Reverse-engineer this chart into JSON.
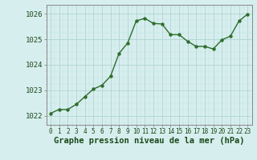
{
  "x": [
    0,
    1,
    2,
    3,
    4,
    5,
    6,
    7,
    8,
    9,
    10,
    11,
    12,
    13,
    14,
    15,
    16,
    17,
    18,
    19,
    20,
    21,
    22,
    23
  ],
  "y": [
    1022.1,
    1022.25,
    1022.25,
    1022.45,
    1022.75,
    1023.05,
    1023.2,
    1023.55,
    1024.45,
    1024.85,
    1025.72,
    1025.82,
    1025.62,
    1025.6,
    1025.18,
    1025.18,
    1024.92,
    1024.72,
    1024.72,
    1024.62,
    1024.98,
    1025.12,
    1025.72,
    1025.98
  ],
  "line_color": "#2d6e2d",
  "marker_color": "#2d6e2d",
  "bg_color": "#d7eeee",
  "grid_color_major": "#b0d4d4",
  "grid_color_minor": "#c0e0e0",
  "ylabel_ticks": [
    1022,
    1023,
    1024,
    1025,
    1026
  ],
  "xlabel_label": "Graphe pression niveau de la mer (hPa)",
  "ylim": [
    1021.65,
    1026.35
  ],
  "xlim": [
    -0.5,
    23.5
  ],
  "text_color": "#1a4a1a",
  "axis_color": "#888888",
  "marker_size": 2.8,
  "line_width": 1.0,
  "xlabel_fontsize": 7.5,
  "ylabel_fontsize": 6.5,
  "xtick_fontsize": 5.5
}
